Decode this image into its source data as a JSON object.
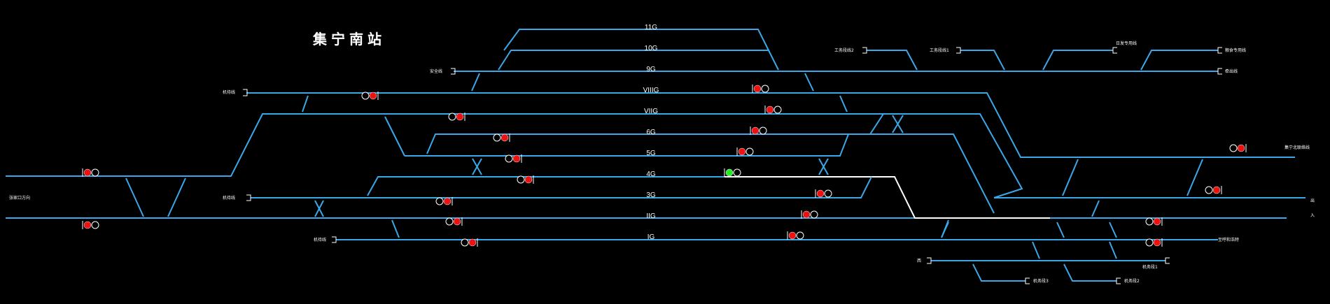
{
  "station": {
    "title": "集宁南站"
  },
  "colors": {
    "track": "#3aa8e8",
    "route": "#ffffff",
    "signal_red": "#ee1111",
    "signal_green": "#22ee22",
    "background": "#000000"
  },
  "tracks": [
    {
      "id": "11G",
      "label": "11G"
    },
    {
      "id": "10G",
      "label": "10G"
    },
    {
      "id": "9G",
      "label": "9G"
    },
    {
      "id": "VIIIG",
      "label": "VIIIG"
    },
    {
      "id": "VIIG",
      "label": "VIIG"
    },
    {
      "id": "6G",
      "label": "6G"
    },
    {
      "id": "5G",
      "label": "5G"
    },
    {
      "id": "4G",
      "label": "4G"
    },
    {
      "id": "3G",
      "label": "3G"
    },
    {
      "id": "IIG",
      "label": "IIG"
    },
    {
      "id": "IG",
      "label": "IG"
    }
  ],
  "side_labels": {
    "anquan": "安全线",
    "jiyou_top": "机待线",
    "jiyou_mid": "机待线",
    "jiyou_bot": "机待线",
    "left_mouth": "张家口方向",
    "gongwu2": "工务段线2",
    "gongwu1": "工务段线1",
    "yiji_zhuanyong": "日发专用线",
    "xiuyou_zhuanyong": "粮食专用线",
    "ziyou": "牵出线",
    "east_line": "集宁北联络线",
    "east_short": "出",
    "east_short2": "入",
    "east_bottom": "至呼和浩特",
    "dong": "西",
    "jiwu1": "机务段1",
    "jiwu2": "机务段2",
    "jiwu3": "机务段3"
  },
  "signals": [
    {
      "name": "left-upper",
      "aspect": "red"
    },
    {
      "name": "left-lower",
      "aspect": "red"
    },
    {
      "name": "viiig-west",
      "aspect": "red"
    },
    {
      "name": "viig-west",
      "aspect": "red"
    },
    {
      "name": "6g-west",
      "aspect": "red"
    },
    {
      "name": "5g-west",
      "aspect": "red"
    },
    {
      "name": "4g-west",
      "aspect": "red"
    },
    {
      "name": "3g-west",
      "aspect": "red"
    },
    {
      "name": "iig-west",
      "aspect": "red"
    },
    {
      "name": "ig-west",
      "aspect": "red"
    },
    {
      "name": "viiig-east",
      "aspect": "red"
    },
    {
      "name": "viig-east",
      "aspect": "red"
    },
    {
      "name": "6g-east",
      "aspect": "red"
    },
    {
      "name": "5g-east",
      "aspect": "red"
    },
    {
      "name": "4g-east",
      "aspect": "green"
    },
    {
      "name": "3g-east",
      "aspect": "red"
    },
    {
      "name": "iig-east",
      "aspect": "red"
    },
    {
      "name": "ig-east",
      "aspect": "red"
    },
    {
      "name": "right-upper",
      "aspect": "red"
    },
    {
      "name": "right-mid",
      "aspect": "red"
    },
    {
      "name": "right-iig",
      "aspect": "red"
    },
    {
      "name": "right-ig",
      "aspect": "red"
    }
  ]
}
